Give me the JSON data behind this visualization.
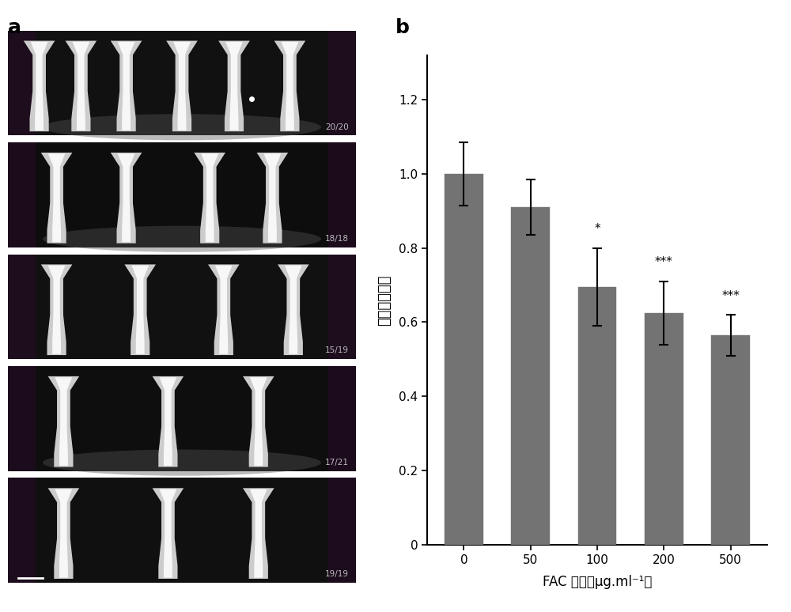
{
  "bar_values": [
    1.0,
    0.91,
    0.695,
    0.625,
    0.565
  ],
  "bar_errors": [
    0.085,
    0.075,
    0.105,
    0.085,
    0.055
  ],
  "bar_color": "#737373",
  "categories": [
    "0",
    "50",
    "100",
    "200",
    "500"
  ],
  "ylabel": "相对荧光强度",
  "xlabel": "FAC 浓度（μg.ml⁻¹）",
  "ylim": [
    0,
    1.32
  ],
  "yticks": [
    0,
    0.2,
    0.4,
    0.6,
    0.8,
    1.0,
    1.2
  ],
  "significance": [
    "",
    "",
    "*",
    "***",
    "***"
  ],
  "panel_a_label": "a",
  "panel_b_label": "b",
  "image_labels": [
    "20/20",
    "18/18",
    "15/19",
    "17/21",
    "19/19"
  ],
  "bar_width": 0.58,
  "axis_linewidth": 1.5,
  "error_capsize": 4,
  "error_linewidth": 1.5,
  "sig_fontsize": 11,
  "ylabel_fontsize": 13,
  "xlabel_fontsize": 12,
  "tick_fontsize": 11,
  "panel_label_fontsize": 18
}
